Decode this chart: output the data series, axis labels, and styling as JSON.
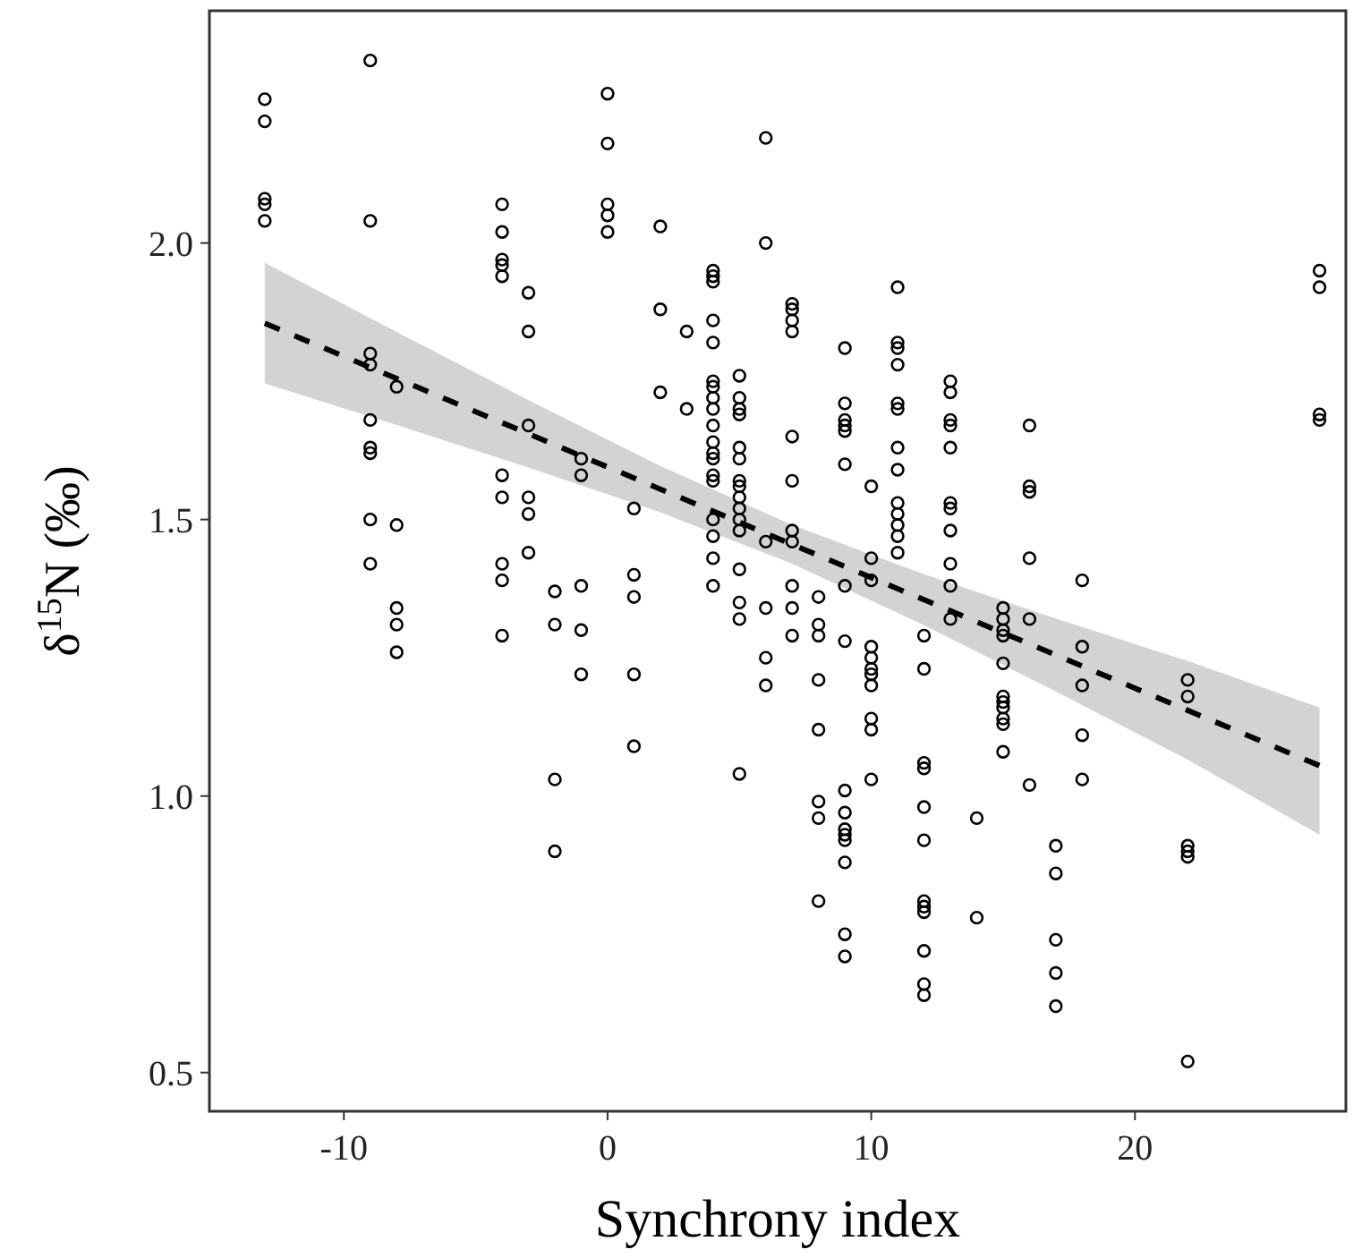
{
  "chart_data": {
    "type": "scatter",
    "xlabel": "Synchrony index",
    "ylabel": "δ$^{15}$N (‰)",
    "xlim": [
      -15.1,
      28
    ],
    "ylim": [
      0.43,
      2.42
    ],
    "xticks": [
      -10,
      0,
      10,
      20
    ],
    "yticks": [
      0.5,
      {
        "value": 1,
        "label": "1.0"
      },
      1.5,
      {
        "value": 2,
        "label": "2.0"
      }
    ],
    "grid": false,
    "series": [
      {
        "color": "#000000",
        "marker": "circle",
        "x": [
          -13,
          -13,
          -13,
          -13,
          -13,
          -9,
          -9,
          -9,
          -9,
          -9,
          -9,
          -9,
          -9,
          -9,
          -8,
          -8,
          -8,
          -8,
          -8,
          -4,
          -4,
          -4,
          -4,
          -4,
          -4,
          -4,
          -4,
          -4,
          -4,
          -3,
          -3,
          -3,
          -3,
          -3,
          -3,
          -2,
          -2,
          -2,
          -2,
          -1,
          -1,
          -1,
          -1,
          -1,
          0,
          0,
          0,
          0,
          0,
          1,
          1,
          1,
          1,
          1,
          2,
          2,
          2,
          3,
          3,
          4,
          4,
          4,
          4,
          4,
          4,
          4,
          4,
          4,
          4,
          4,
          4,
          4,
          4,
          4,
          4,
          4,
          4,
          4,
          5,
          5,
          5,
          5,
          5,
          5,
          5,
          5,
          5,
          5,
          5,
          5,
          5,
          5,
          5,
          5,
          6,
          6,
          6,
          6,
          6,
          6,
          7,
          7,
          7,
          7,
          7,
          7,
          7,
          7,
          7,
          7,
          7,
          8,
          8,
          8,
          8,
          8,
          8,
          8,
          8,
          9,
          9,
          9,
          9,
          9,
          9,
          9,
          9,
          9,
          9,
          9,
          9,
          9,
          9,
          9,
          9,
          10,
          10,
          10,
          10,
          10,
          10,
          10,
          10,
          10,
          10,
          10,
          11,
          11,
          11,
          11,
          11,
          11,
          11,
          11,
          11,
          11,
          11,
          11,
          11,
          12,
          12,
          12,
          12,
          12,
          12,
          12,
          12,
          12,
          12,
          12,
          12,
          13,
          13,
          13,
          13,
          13,
          13,
          13,
          13,
          13,
          13,
          13,
          14,
          14,
          15,
          15,
          15,
          15,
          15,
          15,
          15,
          15,
          15,
          15,
          15,
          16,
          16,
          16,
          16,
          16,
          16,
          17,
          17,
          17,
          17,
          17,
          18,
          18,
          18,
          18,
          18,
          22,
          22,
          22,
          22,
          22,
          22,
          27,
          27,
          27,
          27
        ],
        "values": [
          2.26,
          2.22,
          2.08,
          2.07,
          2.04,
          2.33,
          2.04,
          1.8,
          1.78,
          1.68,
          1.63,
          1.62,
          1.5,
          1.42,
          1.74,
          1.49,
          1.34,
          1.31,
          1.26,
          2.07,
          2.02,
          1.97,
          1.96,
          1.94,
          1.58,
          1.54,
          1.42,
          1.39,
          1.29,
          1.91,
          1.84,
          1.67,
          1.54,
          1.51,
          1.44,
          1.37,
          1.31,
          1.03,
          0.9,
          1.61,
          1.58,
          1.38,
          1.3,
          1.22,
          2.27,
          2.18,
          2.07,
          2.05,
          2.02,
          1.52,
          1.4,
          1.36,
          1.22,
          1.09,
          2.03,
          1.88,
          1.73,
          1.84,
          1.7,
          1.95,
          1.94,
          1.93,
          1.86,
          1.82,
          1.75,
          1.74,
          1.72,
          1.7,
          1.67,
          1.64,
          1.62,
          1.61,
          1.58,
          1.57,
          1.5,
          1.47,
          1.43,
          1.38,
          1.76,
          1.72,
          1.7,
          1.69,
          1.63,
          1.61,
          1.57,
          1.56,
          1.54,
          1.52,
          1.5,
          1.48,
          1.41,
          1.35,
          1.32,
          1.04,
          2.19,
          2.0,
          1.46,
          1.34,
          1.25,
          1.2,
          1.89,
          1.88,
          1.86,
          1.84,
          1.65,
          1.57,
          1.48,
          1.46,
          1.38,
          1.34,
          1.29,
          1.36,
          1.31,
          1.29,
          1.21,
          1.12,
          0.99,
          0.96,
          0.81,
          1.81,
          1.71,
          1.68,
          1.67,
          1.66,
          1.6,
          1.38,
          1.28,
          1.01,
          0.97,
          0.94,
          0.93,
          0.92,
          0.88,
          0.75,
          0.71,
          1.56,
          1.43,
          1.39,
          1.27,
          1.25,
          1.23,
          1.22,
          1.2,
          1.14,
          1.12,
          1.03,
          1.92,
          1.82,
          1.81,
          1.78,
          1.71,
          1.7,
          1.63,
          1.59,
          1.53,
          1.51,
          1.49,
          1.47,
          1.44,
          1.29,
          1.23,
          1.06,
          1.05,
          0.98,
          0.92,
          0.81,
          0.8,
          0.79,
          0.72,
          0.66,
          0.64,
          1.75,
          1.73,
          1.68,
          1.67,
          1.63,
          1.53,
          1.52,
          1.48,
          1.42,
          1.38,
          1.32,
          0.96,
          0.78,
          1.34,
          1.32,
          1.3,
          1.29,
          1.24,
          1.18,
          1.17,
          1.16,
          1.14,
          1.13,
          1.08,
          1.67,
          1.56,
          1.55,
          1.43,
          1.32,
          1.02,
          0.91,
          0.86,
          0.74,
          0.68,
          0.62,
          1.39,
          1.27,
          1.2,
          1.11,
          1.03,
          1.21,
          1.18,
          0.91,
          0.9,
          0.89,
          0.52,
          1.95,
          1.92,
          1.69,
          1.68
        ]
      },
      {
        "type": "line",
        "color": "#000000",
        "marker": "none",
        "line_style": "dashed",
        "x": [
          -13,
          -8,
          -3,
          2,
          7,
          12,
          17,
          22,
          27
        ],
        "values": [
          1.855,
          1.755,
          1.655,
          1.555,
          1.455,
          1.355,
          1.255,
          1.155,
          1.055
        ],
        "lower": [
          1.746,
          1.671,
          1.594,
          1.513,
          1.42,
          1.309,
          1.189,
          1.066,
          0.93
        ],
        "upper": [
          1.964,
          1.839,
          1.716,
          1.597,
          1.49,
          1.401,
          1.321,
          1.244,
          1.16
        ]
      }
    ]
  }
}
